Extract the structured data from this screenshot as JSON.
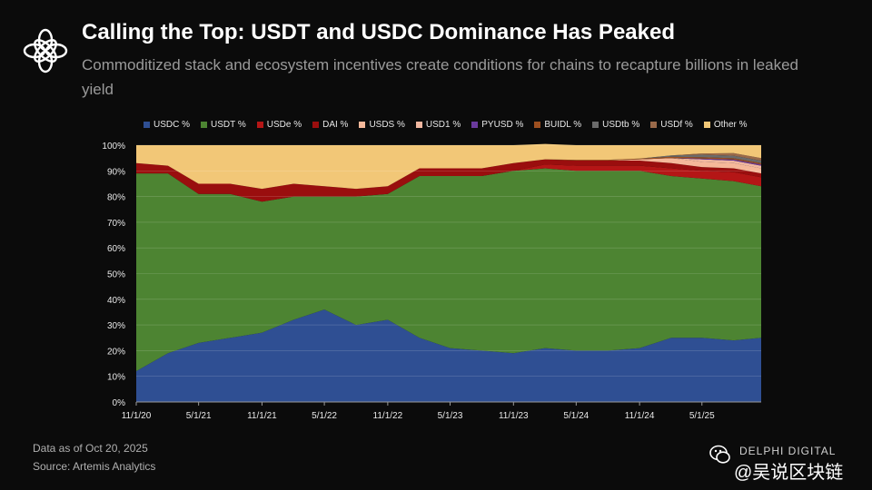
{
  "header": {
    "title": "Calling the Top: USDT and USDC Dominance Has Peaked",
    "subtitle": "Commoditized stack and ecosystem incentives create conditions for chains to recapture billions in leaked yield",
    "logo_icon": "flower-logo-icon"
  },
  "footer": {
    "date_note": "Data as of Oct 20, 2025",
    "source": "Source: Artemis Analytics"
  },
  "watermark": {
    "brand": "DELPHI DIGITAL",
    "text": "@吴说区块链",
    "icon": "wechat-icon"
  },
  "colors": {
    "USDC": "#2f4f93",
    "USDT": "#4d8432",
    "USDe": "#b41616",
    "DAI": "#9a0e0e",
    "USDS": "#f5b89a",
    "USD1": "#f0b7a0",
    "PYUSD": "#6a3a9c",
    "BUIDL": "#9c4f20",
    "USDtb": "#6b6b6b",
    "USDf": "#9a6a4a",
    "Other": "#f2c777"
  },
  "chart_data": {
    "type": "area",
    "stacked": true,
    "x": [
      "11/1/20",
      "2/1/21",
      "5/1/21",
      "8/1/21",
      "11/1/21",
      "2/1/22",
      "5/1/22",
      "8/1/22",
      "11/1/22",
      "2/1/23",
      "5/1/23",
      "8/1/23",
      "11/1/23",
      "2/1/24",
      "5/1/24",
      "8/1/24",
      "11/1/24",
      "2/1/25",
      "5/1/25",
      "8/1/25",
      "10/20/25"
    ],
    "x_tick_labels": [
      "11/1/20",
      "5/1/21",
      "11/1/21",
      "5/1/22",
      "11/1/22",
      "5/1/23",
      "11/1/23",
      "5/1/24",
      "11/1/24",
      "5/1/25"
    ],
    "ylim": [
      0,
      100
    ],
    "y_ticks": [
      "0%",
      "10%",
      "20%",
      "30%",
      "40%",
      "50%",
      "60%",
      "70%",
      "80%",
      "90%",
      "100%"
    ],
    "grid": true,
    "legend_position": "top",
    "series": [
      {
        "name": "USDC %",
        "key": "USDC",
        "values": [
          12,
          19,
          23,
          25,
          27,
          32,
          36,
          30,
          32,
          25,
          21,
          20,
          19,
          21,
          20,
          20,
          21,
          25,
          25,
          24,
          25
        ]
      },
      {
        "name": "USDT %",
        "key": "USDT",
        "values": [
          77,
          70,
          58,
          56,
          51,
          48,
          44,
          50,
          49,
          63,
          67,
          68,
          71,
          70,
          70,
          70,
          69,
          63,
          62,
          62,
          59
        ]
      },
      {
        "name": "USDe %",
        "key": "USDe",
        "values": [
          0,
          0,
          0,
          0,
          0,
          0,
          0,
          0,
          0,
          0,
          0,
          0,
          0,
          1.5,
          2,
          2,
          2,
          3,
          3,
          3.5,
          3.5
        ]
      },
      {
        "name": "DAI %",
        "key": "DAI",
        "values": [
          4,
          3,
          4,
          4,
          5,
          5,
          4,
          3,
          3,
          3,
          3,
          3,
          3,
          2,
          2,
          2,
          2,
          2,
          1.5,
          1.5,
          1.5
        ]
      },
      {
        "name": "USDS %",
        "key": "USDS",
        "values": [
          0,
          0,
          0,
          0,
          0,
          0,
          0,
          0,
          0,
          0,
          0,
          0,
          0,
          0,
          0,
          0,
          0.5,
          2,
          2,
          2,
          2
        ]
      },
      {
        "name": "USD1 %",
        "key": "USD1",
        "values": [
          0,
          0,
          0,
          0,
          0,
          0,
          0,
          0,
          0,
          0,
          0,
          0,
          0,
          0,
          0,
          0,
          0,
          0,
          1,
          1,
          1
        ]
      },
      {
        "name": "PYUSD %",
        "key": "PYUSD",
        "values": [
          0,
          0,
          0,
          0,
          0,
          0,
          0,
          0,
          0,
          0,
          0,
          0,
          0,
          0,
          0,
          0,
          0,
          0,
          0.3,
          0.4,
          0.5
        ]
      },
      {
        "name": "BUIDL %",
        "key": "BUIDL",
        "values": [
          0,
          0,
          0,
          0,
          0,
          0,
          0,
          0,
          0,
          0,
          0,
          0,
          0,
          0,
          0.3,
          0.3,
          0.3,
          0.5,
          0.5,
          0.5,
          0.5
        ]
      },
      {
        "name": "USDtb %",
        "key": "USDtb",
        "values": [
          0,
          0,
          0,
          0,
          0,
          0,
          0,
          0,
          0,
          0,
          0,
          0,
          0,
          0,
          0,
          0,
          0,
          0.5,
          1,
          1,
          1
        ]
      },
      {
        "name": "USDf %",
        "key": "USDf",
        "values": [
          0,
          0,
          0,
          0,
          0,
          0,
          0,
          0,
          0,
          0,
          0,
          0,
          0,
          0,
          0,
          0,
          0,
          0,
          0.5,
          1,
          1
        ]
      },
      {
        "name": "Other  %",
        "key": "Other",
        "values": [
          7,
          8,
          15,
          15,
          17,
          15,
          16,
          17,
          16,
          9,
          9,
          9,
          7,
          6,
          5.7,
          5.7,
          5.2,
          4,
          3.2,
          3.1,
          5
        ]
      }
    ]
  }
}
